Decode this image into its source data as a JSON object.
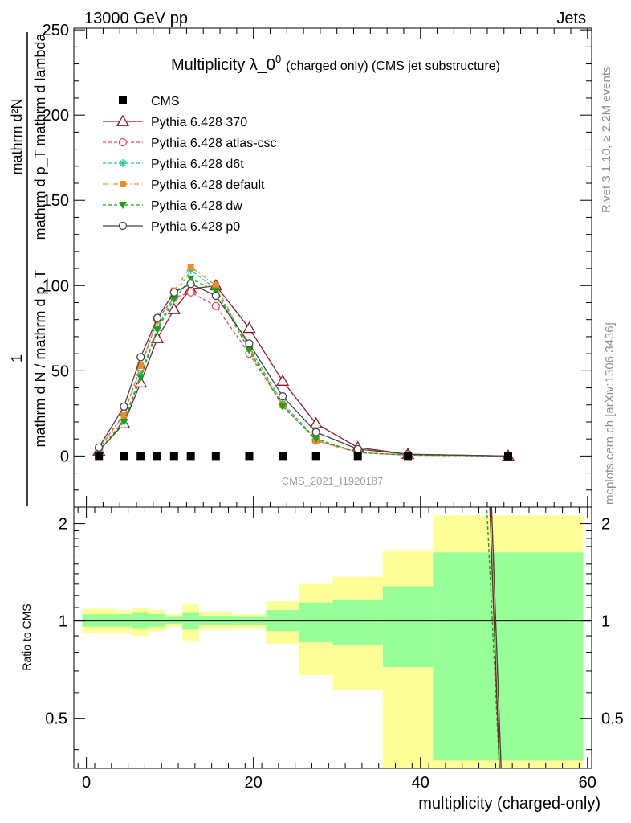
{
  "header": {
    "left": "13000 GeV pp",
    "right": "Jets"
  },
  "side_texts": {
    "rivet": "Rivet 3.1.10, ≥ 2.2M events",
    "mcplots": "mcplots.cern.ch [arXiv:1306.3436]"
  },
  "watermark": "CMS_2021_I1920187",
  "chart_data": [
    {
      "type": "line",
      "title_main": "Multiplicity λ_0",
      "title_sup": "0",
      "title_suffix": "(charged only) (CMS jet substructure)",
      "ylabel_numerator": "mathrm d²N",
      "ylabel_denominator": "mathrm d p_T mathrm d lambda",
      "ylabel_prefix_numerator": "1",
      "ylabel_prefix_denominator": "mathrm d N / mathrm d p_T",
      "xlim": [
        -1.5,
        60.5
      ],
      "ylim": [
        -30,
        251
      ],
      "yticks": [
        0,
        50,
        100,
        150,
        200,
        250
      ],
      "ytick_labels": [
        "0",
        "50",
        "100",
        "150",
        "200",
        "250"
      ],
      "legend_position": "top-left",
      "series": [
        {
          "name": "CMS",
          "color": "#000000",
          "marker": "square",
          "dash": "none",
          "x": [
            1.5,
            4.5,
            6.5,
            8.5,
            10.5,
            12.5,
            15.5,
            19.5,
            23.5,
            27.5,
            32.5,
            38.5,
            50.5
          ],
          "values": [
            0,
            0,
            0,
            0,
            0,
            0,
            0,
            0,
            0,
            0,
            0,
            0,
            0
          ]
        },
        {
          "name": "Pythia 6.428 370",
          "color": "#8b1a2b",
          "marker": "triangle-open",
          "dash": "none",
          "x": [
            1.5,
            4.5,
            6.5,
            8.5,
            10.5,
            12.5,
            15.5,
            19.5,
            23.5,
            27.5,
            32.5,
            38.5,
            50.5
          ],
          "values": [
            3,
            19,
            43,
            69,
            86,
            98,
            100,
            75,
            44,
            19,
            5,
            1,
            0
          ]
        },
        {
          "name": "Pythia 6.428 atlas-csc",
          "color": "#e8485c",
          "marker": "circle-open",
          "dash": "4,3",
          "x": [
            1.5,
            4.5,
            6.5,
            8.5,
            10.5,
            12.5,
            15.5,
            19.5,
            23.5,
            27.5,
            32.5,
            38.5,
            50.5
          ],
          "values": [
            4,
            25,
            52,
            80,
            93,
            96,
            88,
            60,
            30,
            9,
            2,
            0.5,
            0
          ]
        },
        {
          "name": "Pythia 6.428 d6t",
          "color": "#1fc99a",
          "marker": "star",
          "dash": "4,3",
          "x": [
            1.5,
            4.5,
            6.5,
            8.5,
            10.5,
            12.5,
            15.5,
            19.5,
            23.5,
            27.5,
            32.5,
            38.5,
            50.5
          ],
          "values": [
            3,
            21,
            48,
            75,
            94,
            109,
            98,
            64,
            31,
            10,
            2,
            0.5,
            0
          ]
        },
        {
          "name": "Pythia 6.428 default",
          "color": "#f28c28",
          "marker": "square-filled",
          "dash": "6,3,1,3",
          "x": [
            1.5,
            4.5,
            6.5,
            8.5,
            10.5,
            12.5,
            15.5,
            19.5,
            23.5,
            27.5,
            32.5,
            38.5,
            50.5
          ],
          "values": [
            4,
            24,
            53,
            80,
            97,
            111,
            100,
            63,
            30,
            9,
            2,
            0.5,
            0
          ]
        },
        {
          "name": "Pythia 6.428 dw",
          "color": "#1aa31a",
          "marker": "triangle-down-filled",
          "dash": "4,3",
          "x": [
            1.5,
            4.5,
            6.5,
            8.5,
            10.5,
            12.5,
            15.5,
            19.5,
            23.5,
            27.5,
            32.5,
            38.5,
            50.5
          ],
          "values": [
            3,
            20,
            46,
            74,
            92,
            104,
            97,
            62,
            29,
            10,
            2,
            0.5,
            0
          ]
        },
        {
          "name": "Pythia 6.428 p0",
          "color": "#444444",
          "marker": "circle-open",
          "dash": "none",
          "x": [
            1.5,
            4.5,
            6.5,
            8.5,
            10.5,
            12.5,
            15.5,
            19.5,
            23.5,
            27.5,
            32.5,
            38.5,
            50.5
          ],
          "values": [
            5,
            29,
            58,
            81,
            96,
            101,
            94,
            66,
            35,
            14,
            4,
            1,
            0
          ]
        }
      ]
    },
    {
      "type": "area",
      "ylabel": "Ratio to CMS",
      "xlabel": "multiplicity (charged-only)",
      "xlim": [
        -1.5,
        60.5
      ],
      "ylim": [
        0.35,
        2.25
      ],
      "xticks": [
        0,
        20,
        40,
        60
      ],
      "xtick_labels": [
        "0",
        "20",
        "40",
        "60"
      ],
      "yticks": [
        0.5,
        1,
        2
      ],
      "ytick_labels": [
        "0.5",
        "1",
        "2"
      ],
      "bands": [
        {
          "x0": -0.5,
          "x1": 3.5,
          "inner": [
            0.96,
            1.05
          ],
          "outer": [
            0.92,
            1.09
          ]
        },
        {
          "x0": 3.5,
          "x1": 5.5,
          "inner": [
            0.96,
            1.05
          ],
          "outer": [
            0.92,
            1.08
          ]
        },
        {
          "x0": 5.5,
          "x1": 7.5,
          "inner": [
            0.95,
            1.06
          ],
          "outer": [
            0.9,
            1.1
          ]
        },
        {
          "x0": 7.5,
          "x1": 9.5,
          "inner": [
            0.96,
            1.05
          ],
          "outer": [
            0.93,
            1.08
          ]
        },
        {
          "x0": 9.5,
          "x1": 11.5,
          "inner": [
            0.98,
            1.03
          ],
          "outer": [
            0.96,
            1.05
          ]
        },
        {
          "x0": 11.5,
          "x1": 13.5,
          "inner": [
            0.94,
            1.06
          ],
          "outer": [
            0.87,
            1.13
          ]
        },
        {
          "x0": 13.5,
          "x1": 17.5,
          "inner": [
            0.97,
            1.04
          ],
          "outer": [
            0.94,
            1.07
          ]
        },
        {
          "x0": 17.5,
          "x1": 21.5,
          "inner": [
            0.97,
            1.03
          ],
          "outer": [
            0.95,
            1.05
          ]
        },
        {
          "x0": 21.5,
          "x1": 25.5,
          "inner": [
            0.93,
            1.08
          ],
          "outer": [
            0.85,
            1.15
          ]
        },
        {
          "x0": 25.5,
          "x1": 29.5,
          "inner": [
            0.86,
            1.14
          ],
          "outer": [
            0.68,
            1.3
          ]
        },
        {
          "x0": 29.5,
          "x1": 35.5,
          "inner": [
            0.84,
            1.16
          ],
          "outer": [
            0.61,
            1.37
          ]
        },
        {
          "x0": 35.5,
          "x1": 41.5,
          "inner": [
            0.72,
            1.28
          ],
          "outer": [
            0.35,
            1.65
          ]
        },
        {
          "x0": 41.5,
          "x1": 59.5,
          "inner": [
            0.37,
            1.63
          ],
          "outer": [
            0.35,
            2.12
          ]
        }
      ],
      "ratio_lines": [
        {
          "name": "Pythia 6.428 dw",
          "color": "#1aa31a",
          "dash": "4,3",
          "x": [
            47.8,
            49.9
          ],
          "values": [
            2.7,
            0.2
          ]
        },
        {
          "name": "Pythia 6.428 370",
          "color": "#8b1a2b",
          "dash": "none",
          "x": [
            48.2,
            49.8
          ],
          "values": [
            2.7,
            0.2
          ]
        },
        {
          "name": "Pythia 6.428 p0",
          "color": "#444444",
          "dash": "none",
          "x": [
            48.4,
            50.0
          ],
          "values": [
            2.7,
            0.2
          ]
        }
      ]
    }
  ]
}
